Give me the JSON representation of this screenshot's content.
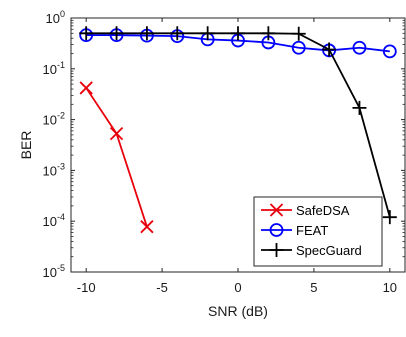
{
  "chart_data": {
    "type": "line",
    "title": "",
    "xlabel": "SNR (dB)",
    "ylabel": "BER",
    "y_scale": "log",
    "xlim": [
      -11,
      11
    ],
    "ylim": [
      1e-05,
      1
    ],
    "x_ticks": [
      -10,
      -5,
      0,
      5,
      10
    ],
    "x_tick_labels": [
      "-10",
      "-5",
      "0",
      "5",
      "10"
    ],
    "y_ticks": [
      1e-05,
      0.0001,
      0.001,
      0.01,
      0.1,
      1
    ],
    "y_tick_labels": [
      {
        "base": "10",
        "exp": "-5"
      },
      {
        "base": "10",
        "exp": "-4"
      },
      {
        "base": "10",
        "exp": "-3"
      },
      {
        "base": "10",
        "exp": "-2"
      },
      {
        "base": "10",
        "exp": "-1"
      },
      {
        "base": "10",
        "exp": "0"
      }
    ],
    "grid": false,
    "legend_position": "bottom-right",
    "series": [
      {
        "name": "SafeDSA",
        "color": "#e8000b",
        "marker": "x",
        "x": [
          -10,
          -8,
          -6
        ],
        "y": [
          0.042,
          0.0053,
          7.8e-05
        ]
      },
      {
        "name": "FEAT",
        "color": "#0000ff",
        "marker": "circle",
        "x": [
          -10,
          -8,
          -6,
          -4,
          -2,
          0,
          2,
          4,
          6,
          8,
          10
        ],
        "y": [
          0.46,
          0.46,
          0.45,
          0.44,
          0.38,
          0.36,
          0.33,
          0.26,
          0.23,
          0.26,
          0.22
        ]
      },
      {
        "name": "SpecGuard",
        "color": "#000000",
        "marker": "plus",
        "x": [
          -10,
          -8,
          -6,
          -4,
          -2,
          0,
          2,
          4,
          6,
          8,
          10
        ],
        "y": [
          0.5,
          0.5,
          0.5,
          0.5,
          0.5,
          0.5,
          0.5,
          0.49,
          0.24,
          0.017,
          0.00012
        ]
      }
    ]
  }
}
